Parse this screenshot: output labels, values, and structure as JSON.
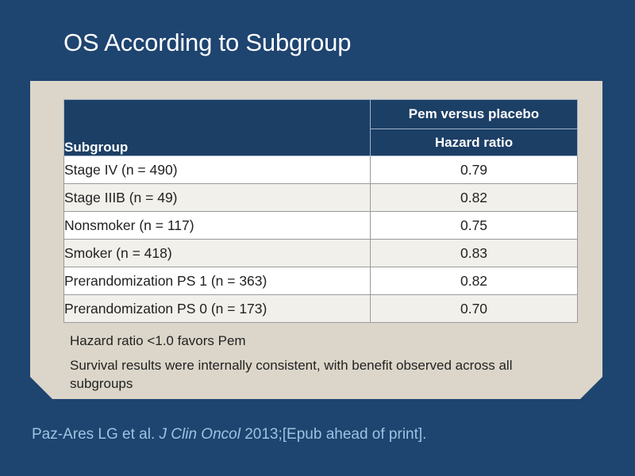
{
  "title": "OS According to Subgroup",
  "table": {
    "col_subgroup": "Subgroup",
    "col_group": "Pem versus placebo",
    "col_hr": "Hazard ratio",
    "rows": [
      {
        "subgroup": "Stage IV (n = 490)",
        "hr": "0.79"
      },
      {
        "subgroup": "Stage IIIB (n = 49)",
        "hr": "0.82"
      },
      {
        "subgroup": "Nonsmoker (n = 117)",
        "hr": "0.75"
      },
      {
        "subgroup": "Smoker (n = 418)",
        "hr": "0.83"
      },
      {
        "subgroup": "Prerandomization PS 1 (n = 363)",
        "hr": "0.82"
      },
      {
        "subgroup": "Prerandomization PS 0 (n = 173)",
        "hr": "0.70"
      }
    ]
  },
  "notes": {
    "hr_note": "Hazard ratio <1.0 favors Pem",
    "consistency_note": "Survival results were internally consistent, with benefit observed across all subgroups"
  },
  "citation": {
    "authors": "Paz-Ares LG et al.",
    "journal": "J Clin Oncol",
    "details": "2013;[Epub ahead of print]."
  },
  "colors": {
    "background": "#1e4470",
    "panel": "#dbd6c9",
    "header": "#1c3f66",
    "citation": "#9ac4e2"
  }
}
